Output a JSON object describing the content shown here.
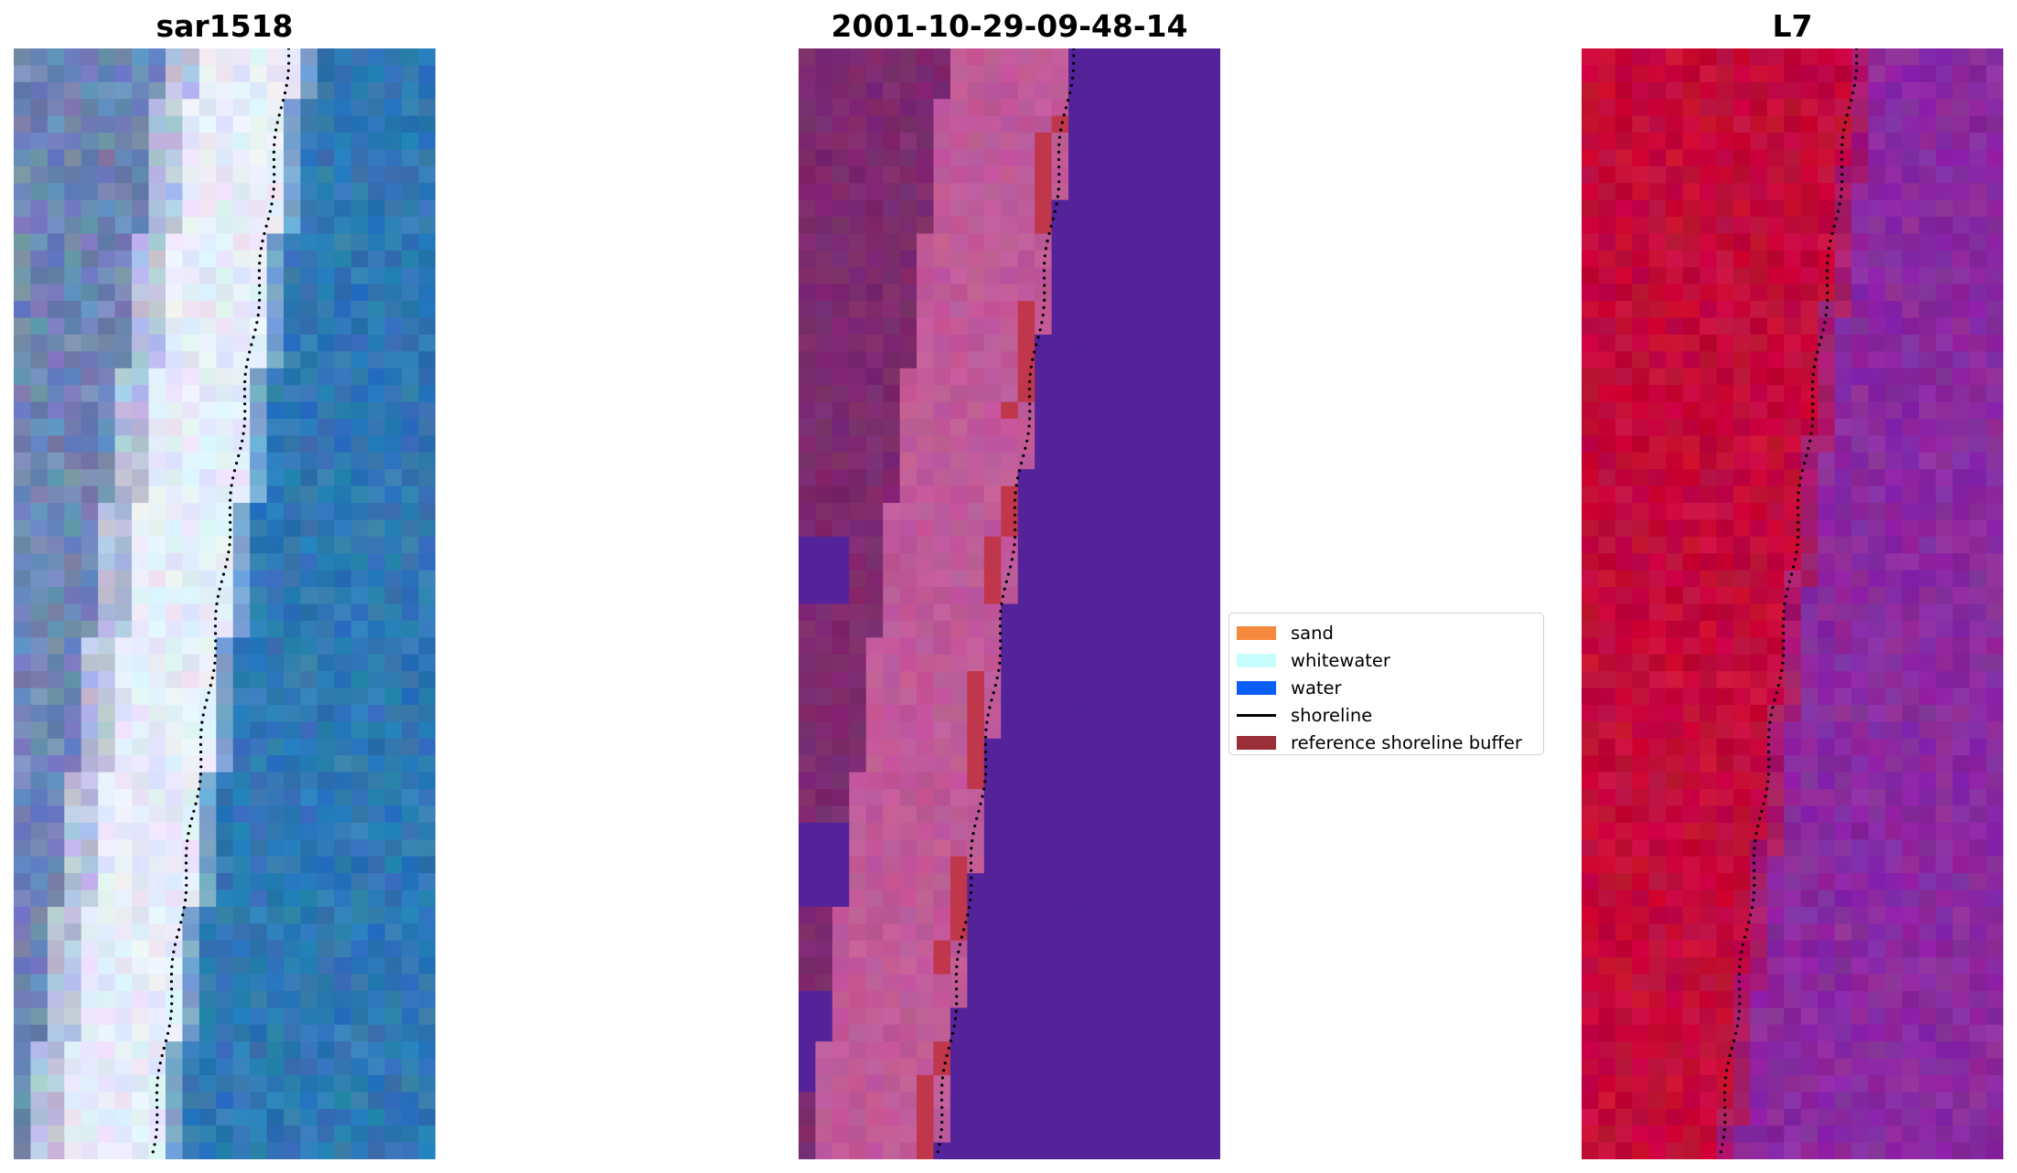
{
  "panels": [
    {
      "title": "sar1518",
      "image": "RGB satellite image"
    },
    {
      "title": "2001-10-29-09-48-14",
      "image": "classified image"
    },
    {
      "title": "L7",
      "image": "false colour image"
    }
  ],
  "legend": {
    "items": [
      {
        "label": "sand",
        "color": "#f58a3c",
        "kind": "patch"
      },
      {
        "label": "whitewater",
        "color": "#c8fdfd",
        "kind": "patch"
      },
      {
        "label": "water",
        "color": "#0a5ef6",
        "kind": "patch"
      },
      {
        "label": "shoreline",
        "color": "#000000",
        "kind": "line"
      },
      {
        "label": "reference shoreline buffer",
        "color": "#9a2f37",
        "kind": "patch"
      }
    ]
  },
  "colors": {
    "rgb_land": "#6f86b4",
    "rgb_sand": "#e6ecfb",
    "rgb_water": "#2f78b4",
    "class_land": "#7d2a6e",
    "class_sand_mix": "#c05a98",
    "class_water": "#54239a",
    "class_buffer": "#c0364a",
    "fc_land": "#c4093a",
    "fc_water": "#8a2aa0"
  }
}
